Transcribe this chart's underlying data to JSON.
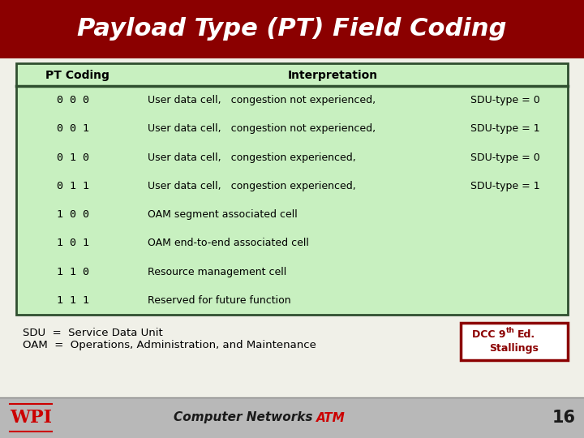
{
  "title": "Payload Type (PT) Field Coding",
  "title_bg": "#8B0000",
  "title_color": "#FFFFFF",
  "table_bg": "#C8F0C0",
  "table_border_color": "#2F4F2F",
  "col_header": [
    "PT Coding",
    "Interpretation"
  ],
  "rows": [
    [
      "0 0 0",
      "User data cell,   congestion not experienced,",
      "SDU-type = 0"
    ],
    [
      "0 0 1",
      "User data cell,   congestion not experienced,",
      "SDU-type = 1"
    ],
    [
      "0 1 0",
      "User data cell,   congestion experienced,",
      "SDU-type = 0"
    ],
    [
      "0 1 1",
      "User data cell,   congestion experienced,",
      "SDU-type = 1"
    ],
    [
      "1 0 0",
      "OAM segment associated cell",
      ""
    ],
    [
      "1 0 1",
      "OAM end-to-end associated cell",
      ""
    ],
    [
      "1 1 0",
      "Resource management cell",
      ""
    ],
    [
      "1 1 1",
      "Reserved for future function",
      ""
    ]
  ],
  "note1": "SDU  =  Service Data Unit",
  "note2": "OAM  =  Operations, Administration, and Maintenance",
  "dcc_box_color": "#8B0000",
  "footer_bg": "#B8B8B8",
  "slide_bg": "#F0F0E8"
}
